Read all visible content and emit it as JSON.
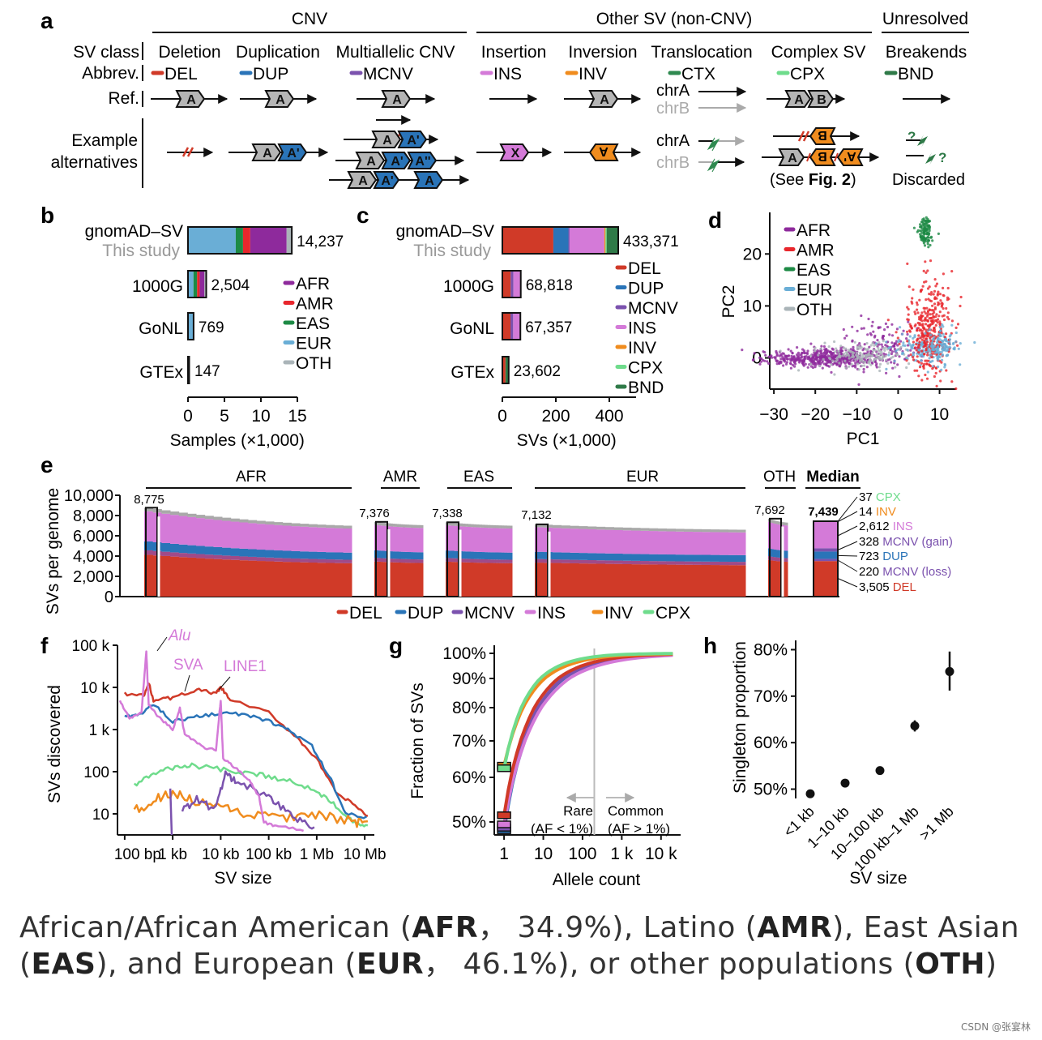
{
  "colors": {
    "DEL": "#d03a28",
    "DUP": "#2a74b8",
    "MCNV": "#7b52ae",
    "INS": "#d47ad8",
    "INV": "#f08c1e",
    "CPX": "#6fdc8c",
    "CTX": "#2f8a50",
    "BND": "#2f7a48",
    "AFR": "#8e2a9c",
    "AMR": "#e8262c",
    "EAS": "#1d8a45",
    "EUR": "#6aaed6",
    "OTH": "#aab4b8",
    "gray": "#9a9a9a"
  },
  "panel_a": {
    "letter": "a",
    "groups": [
      "CNV",
      "Other SV (non-CNV)",
      "Unresolved"
    ],
    "row_labels": {
      "sv_class": "SV class",
      "abbrev": "Abbrev.",
      "ref": "Ref.",
      "example1": "Example",
      "example2": "alternatives"
    },
    "classes": [
      {
        "name": "Deletion",
        "abbr": "DEL"
      },
      {
        "name": "Duplication",
        "abbr": "DUP"
      },
      {
        "name": "Multiallelic CNV",
        "abbr": "MCNV"
      },
      {
        "name": "Insertion",
        "abbr": "INS"
      },
      {
        "name": "Inversion",
        "abbr": "INV"
      },
      {
        "name": "Translocation",
        "abbr": "CTX"
      },
      {
        "name": "Complex SV",
        "abbr": "CPX"
      },
      {
        "name": "Breakends",
        "abbr": "BND"
      }
    ],
    "seg_A": "A",
    "seg_B": "B",
    "seg_X": "X",
    "seg_A1": "A'",
    "seg_A2": "A''",
    "seg_AN": "A",
    "chrA": "chrA",
    "chrB": "chrB",
    "see_fig": "(See ",
    "see_fig_bold": "Fig. 2",
    "see_fig_close": ")",
    "discarded": "Discarded",
    "question": "?"
  },
  "panel_b": {
    "letter": "b",
    "datasets": [
      {
        "name": "gnomAD–SV",
        "sub": "This study",
        "value": "14,237"
      },
      {
        "name": "1000G",
        "value": "2,504"
      },
      {
        "name": "GoNL",
        "value": "769"
      },
      {
        "name": "GTEx",
        "value": "147"
      }
    ],
    "legend": [
      "AFR",
      "AMR",
      "EAS",
      "EUR",
      "OTH"
    ],
    "ticks": [
      "0",
      "5",
      "10",
      "15"
    ],
    "xlabel": "Samples (×1,000)"
  },
  "panel_c": {
    "letter": "c",
    "datasets": [
      {
        "name": "gnomAD–SV",
        "sub": "This study",
        "value": "433,371"
      },
      {
        "name": "1000G",
        "value": "68,818"
      },
      {
        "name": "GoNL",
        "value": "67,357"
      },
      {
        "name": "GTEx",
        "value": "23,602"
      }
    ],
    "legend": [
      "DEL",
      "DUP",
      "MCNV",
      "INS",
      "INV",
      "CPX",
      "BND"
    ],
    "ticks": [
      "0",
      "200",
      "400"
    ],
    "xlabel": "SVs (×1,000)"
  },
  "panel_d": {
    "letter": "d",
    "legend": [
      "AFR",
      "AMR",
      "EAS",
      "EUR",
      "OTH"
    ],
    "xticks": [
      "−30",
      "−20",
      "−10",
      "0",
      "10"
    ],
    "yticks": [
      "0",
      "10",
      "20"
    ],
    "xlabel": "PC1",
    "ylabel": "PC2"
  },
  "panel_e": {
    "letter": "e",
    "groups": [
      "AFR",
      "AMR",
      "EAS",
      "EUR",
      "OTH"
    ],
    "median_label": "Median",
    "top_values": [
      "8,775",
      "7,376",
      "7,338",
      "7,132",
      "7,692",
      "7,439"
    ],
    "yticks": [
      "0",
      "2,000",
      "4,000",
      "6,000",
      "8,000",
      "10,000"
    ],
    "ylabel": "SVs per genome",
    "median_breakdown": [
      {
        "n": "37",
        "cls": "CPX"
      },
      {
        "n": "14",
        "cls": "INV"
      },
      {
        "n": "2,612",
        "cls": "INS"
      },
      {
        "n": "328",
        "cls": "MCNV (gain)"
      },
      {
        "n": "723",
        "cls": "DUP"
      },
      {
        "n": "220",
        "cls": "MCNV (loss)"
      },
      {
        "n": "3,505",
        "cls": "DEL"
      }
    ],
    "legend": [
      "DEL",
      "DUP",
      "MCNV",
      "INS",
      "INV",
      "CPX"
    ]
  },
  "panel_f": {
    "letter": "f",
    "yticks": [
      "10",
      "100",
      "1 k",
      "10 k",
      "100 k"
    ],
    "xticks": [
      "100 bp",
      "1 kb",
      "10 kb",
      "100 kb",
      "1 Mb",
      "10 Mb"
    ],
    "xlabel": "SV size",
    "ylabel": "SVs discovered",
    "annotations": [
      "Alu",
      "SVA",
      "LINE1"
    ]
  },
  "panel_g": {
    "letter": "g",
    "yticks": [
      "50%",
      "60%",
      "70%",
      "80%",
      "90%",
      "100%"
    ],
    "xticks": [
      "1",
      "10",
      "100",
      "1 k",
      "10 k"
    ],
    "xlabel": "Allele count",
    "ylabel": "Fraction of SVs",
    "rare": "Rare",
    "rare_sub": "(AF < 1%)",
    "common": "Common",
    "common_sub": "(AF > 1%)"
  },
  "panel_h": {
    "letter": "h",
    "yticks": [
      "50%",
      "60%",
      "70%",
      "80%"
    ],
    "categories": [
      "<1 kb",
      "1–10 kb",
      "10–100 kb",
      "100 kb–1 Mb",
      ">1 Mb"
    ],
    "values": [
      49.0,
      51.3,
      54.0,
      63.6,
      75.3
    ],
    "err_low": [
      48.6,
      50.9,
      53.6,
      62.4,
      71.2
    ],
    "err_high": [
      49.4,
      51.7,
      54.4,
      64.8,
      79.6
    ],
    "xlabel": "SV size",
    "ylabel": "Singleton proportion"
  },
  "chart_data": [
    {
      "type": "bar",
      "title": "b",
      "orientation": "horizontal",
      "categories": [
        "gnomAD–SV",
        "1000G",
        "GoNL",
        "GTEx"
      ],
      "values": [
        14.237,
        2.504,
        0.769,
        0.147
      ],
      "xlabel": "Samples (×1,000)",
      "xlim": [
        0,
        15
      ]
    },
    {
      "type": "bar",
      "title": "c",
      "orientation": "horizontal",
      "categories": [
        "gnomAD–SV",
        "1000G",
        "GoNL",
        "GTEx"
      ],
      "values": [
        433.371,
        68.818,
        67.357,
        23.602
      ],
      "xlabel": "SVs (×1,000)",
      "xlim": [
        0,
        500
      ]
    },
    {
      "type": "scatter",
      "title": "d",
      "xlabel": "PC1",
      "ylabel": "PC2",
      "xlim": [
        -30,
        13
      ],
      "ylim": [
        -5,
        28
      ],
      "series": [
        "AFR",
        "AMR",
        "EAS",
        "EUR",
        "OTH"
      ]
    },
    {
      "type": "bar",
      "title": "e",
      "ylabel": "SVs per genome",
      "ylim": [
        0,
        10000
      ],
      "median_total": 7439
    },
    {
      "type": "line",
      "title": "f",
      "xlabel": "SV size",
      "ylabel": "SVs discovered",
      "xscale": "log",
      "yscale": "log",
      "series": [
        "DEL",
        "DUP",
        "MCNV",
        "INS",
        "INV",
        "CPX"
      ]
    },
    {
      "type": "line",
      "title": "g",
      "xlabel": "Allele count",
      "ylabel": "Fraction of SVs",
      "xscale": "log",
      "ylim": [
        48,
        100
      ],
      "series": [
        "DEL",
        "DUP",
        "MCNV",
        "INS",
        "INV",
        "CPX"
      ]
    },
    {
      "type": "scatter",
      "title": "h",
      "xlabel": "SV size",
      "ylabel": "Singleton proportion",
      "categories": [
        "<1 kb",
        "1–10 kb",
        "10–100 kb",
        "100 kb–1 Mb",
        ">1 Mb"
      ],
      "values": [
        49.0,
        51.3,
        54.0,
        63.6,
        75.3
      ],
      "ylim": [
        48,
        82
      ]
    }
  ],
  "caption": {
    "p1": "African/African American (",
    "b1": "AFR",
    "p2": "， 34.9%), Latino (",
    "b2": "AMR",
    "p3": "), East Asian (",
    "b3": "EAS",
    "p4": "), and European (",
    "b4": "EUR",
    "p5": "， 46.1%), or other populations (",
    "b5": "OTH",
    "p6": ")"
  },
  "watermark": "CSDN @张宴林"
}
